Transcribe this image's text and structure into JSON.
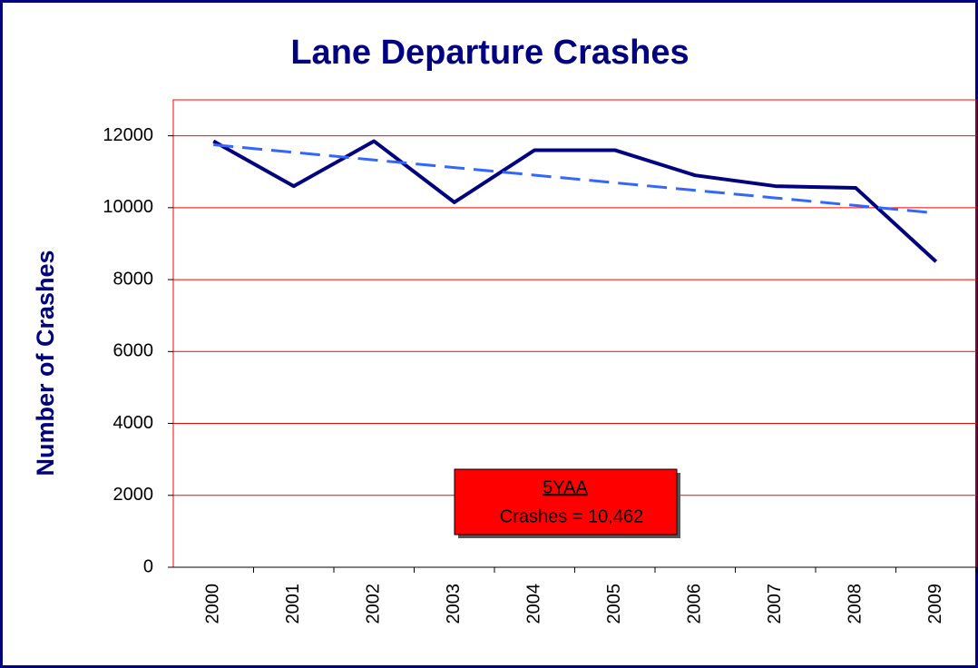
{
  "chart_data": {
    "type": "line",
    "title": "Lane Departure Crashes",
    "y_label": "Number of Crashes",
    "categories": [
      "2000",
      "2001",
      "2002",
      "2003",
      "2004",
      "2005",
      "2006",
      "2007",
      "2008",
      "2009"
    ],
    "series": [
      {
        "name": "Crashes",
        "color": "#000080",
        "dash": false,
        "values": [
          11850,
          10600,
          11850,
          10150,
          11600,
          11600,
          10900,
          10600,
          10550,
          8500
        ]
      },
      {
        "name": "Trend",
        "color": "#3366ff",
        "dash": true,
        "values": [
          11750,
          11539,
          11328,
          11117,
          10906,
          10694,
          10483,
          10272,
          10061,
          9850
        ]
      }
    ],
    "annotation": {
      "title": "5YAA",
      "text": "Crashes = 10,462"
    },
    "ylim": [
      0,
      13000
    ],
    "yticks": [
      0,
      2000,
      4000,
      6000,
      8000,
      10000,
      12000
    ],
    "grid": true
  }
}
